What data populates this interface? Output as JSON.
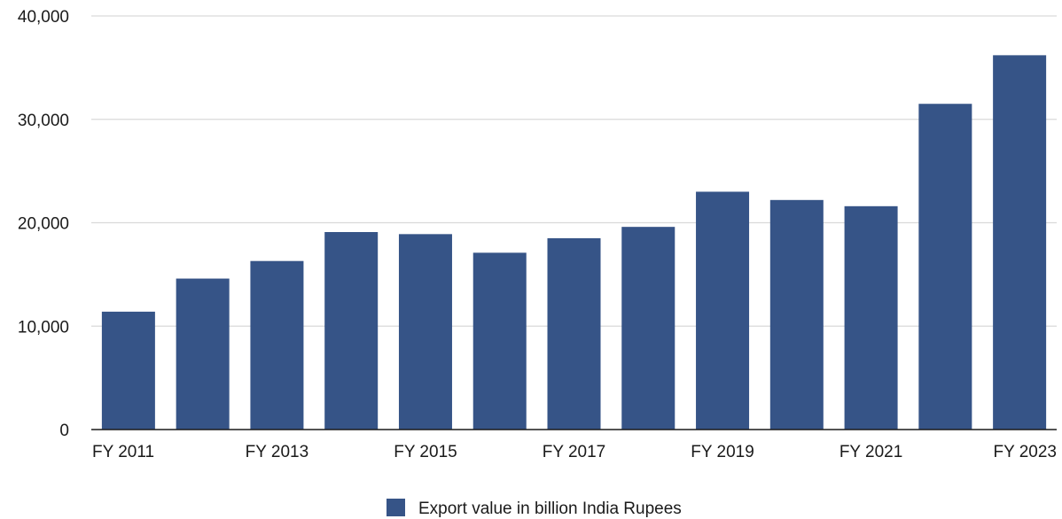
{
  "colors": {
    "bar": "#365487",
    "grid": "#d9d9d9",
    "axis": "#1a1a1a",
    "text": "#1a1a1a"
  },
  "chart_data": {
    "type": "bar",
    "title": "",
    "xlabel": "",
    "ylabel": "",
    "categories": [
      "FY 2011",
      "FY 2012",
      "FY 2013",
      "FY 2014",
      "FY 2015",
      "FY 2016",
      "FY 2017",
      "FY 2018",
      "FY 2019",
      "FY 2020",
      "FY 2021",
      "FY 2022",
      "FY 2023"
    ],
    "x_tick_labels": [
      "FY 2011",
      "",
      "FY 2013",
      "",
      "FY 2015",
      "",
      "FY 2017",
      "",
      "FY 2019",
      "",
      "FY 2021",
      "",
      "FY 2023"
    ],
    "series": [
      {
        "name": "Export value in billion India Rupees",
        "values": [
          11400,
          14600,
          16300,
          19100,
          18900,
          17100,
          18500,
          19600,
          23000,
          22200,
          21600,
          31500,
          36200
        ]
      }
    ],
    "ylim": [
      0,
      40000
    ],
    "y_ticks": [
      0,
      10000,
      20000,
      30000,
      40000
    ],
    "y_tick_labels": [
      "0",
      "10,000",
      "20,000",
      "30,000",
      "40,000"
    ],
    "grid": true,
    "legend_position": "bottom-center"
  }
}
